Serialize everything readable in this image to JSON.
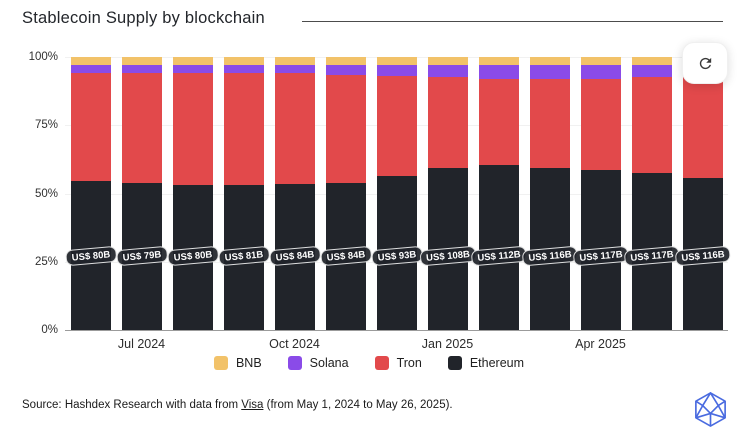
{
  "title": "Stablecoin Supply by blockchain",
  "refresh": {
    "icon": "refresh-icon"
  },
  "source": {
    "prefix": "Source: Hashdex Research with data from ",
    "link_text": "Visa",
    "suffix": " (from May 1, 2024 to May 26, 2025)."
  },
  "logo": {
    "name": "hashdex-gem-logo",
    "color": "#4a6be0"
  },
  "chart_data": {
    "type": "bar",
    "stacked": true,
    "title": "Stablecoin Supply by blockchain",
    "unit": "percent",
    "ylim": [
      0,
      100
    ],
    "grid": true,
    "legend_position": "bottom",
    "yticks": [
      "100%",
      "75%",
      "50%",
      "25%",
      "0%"
    ],
    "xtick_labels": [
      {
        "label": "Jul 2024",
        "bar_index": 2
      },
      {
        "label": "Oct 2024",
        "bar_index": 5
      },
      {
        "label": "Jan 2025",
        "bar_index": 8
      },
      {
        "label": "Apr 2025",
        "bar_index": 11
      }
    ],
    "bar_value_labels": [
      "US$ 80B",
      "US$ 79B",
      "US$ 80B",
      "US$ 81B",
      "US$ 84B",
      "US$ 84B",
      "US$ 93B",
      "US$ 108B",
      "US$ 112B",
      "US$ 116B",
      "US$ 117B",
      "US$ 117B",
      "US$ 116B"
    ],
    "series": [
      {
        "name": "BNB",
        "color": "#F2C269",
        "values": [
          3,
          3,
          3,
          3,
          3,
          3,
          3,
          3,
          3,
          3,
          3,
          3,
          3
        ]
      },
      {
        "name": "Solana",
        "color": "#8A4BE8",
        "values": [
          3,
          3,
          3,
          3,
          3,
          3.5,
          4,
          4.5,
          5,
          5,
          5,
          4.5,
          4
        ]
      },
      {
        "name": "Tron",
        "color": "#E2494B",
        "values": [
          39.5,
          40,
          41,
          41,
          40.5,
          39.5,
          36.5,
          33,
          31.5,
          32.5,
          33.5,
          35,
          37.5
        ]
      },
      {
        "name": "Ethereum",
        "color": "#21242A",
        "values": [
          54.5,
          54,
          53,
          53,
          53.5,
          54,
          56.5,
          59.5,
          60.5,
          59.5,
          58.5,
          57.5,
          55.5
        ]
      }
    ]
  }
}
